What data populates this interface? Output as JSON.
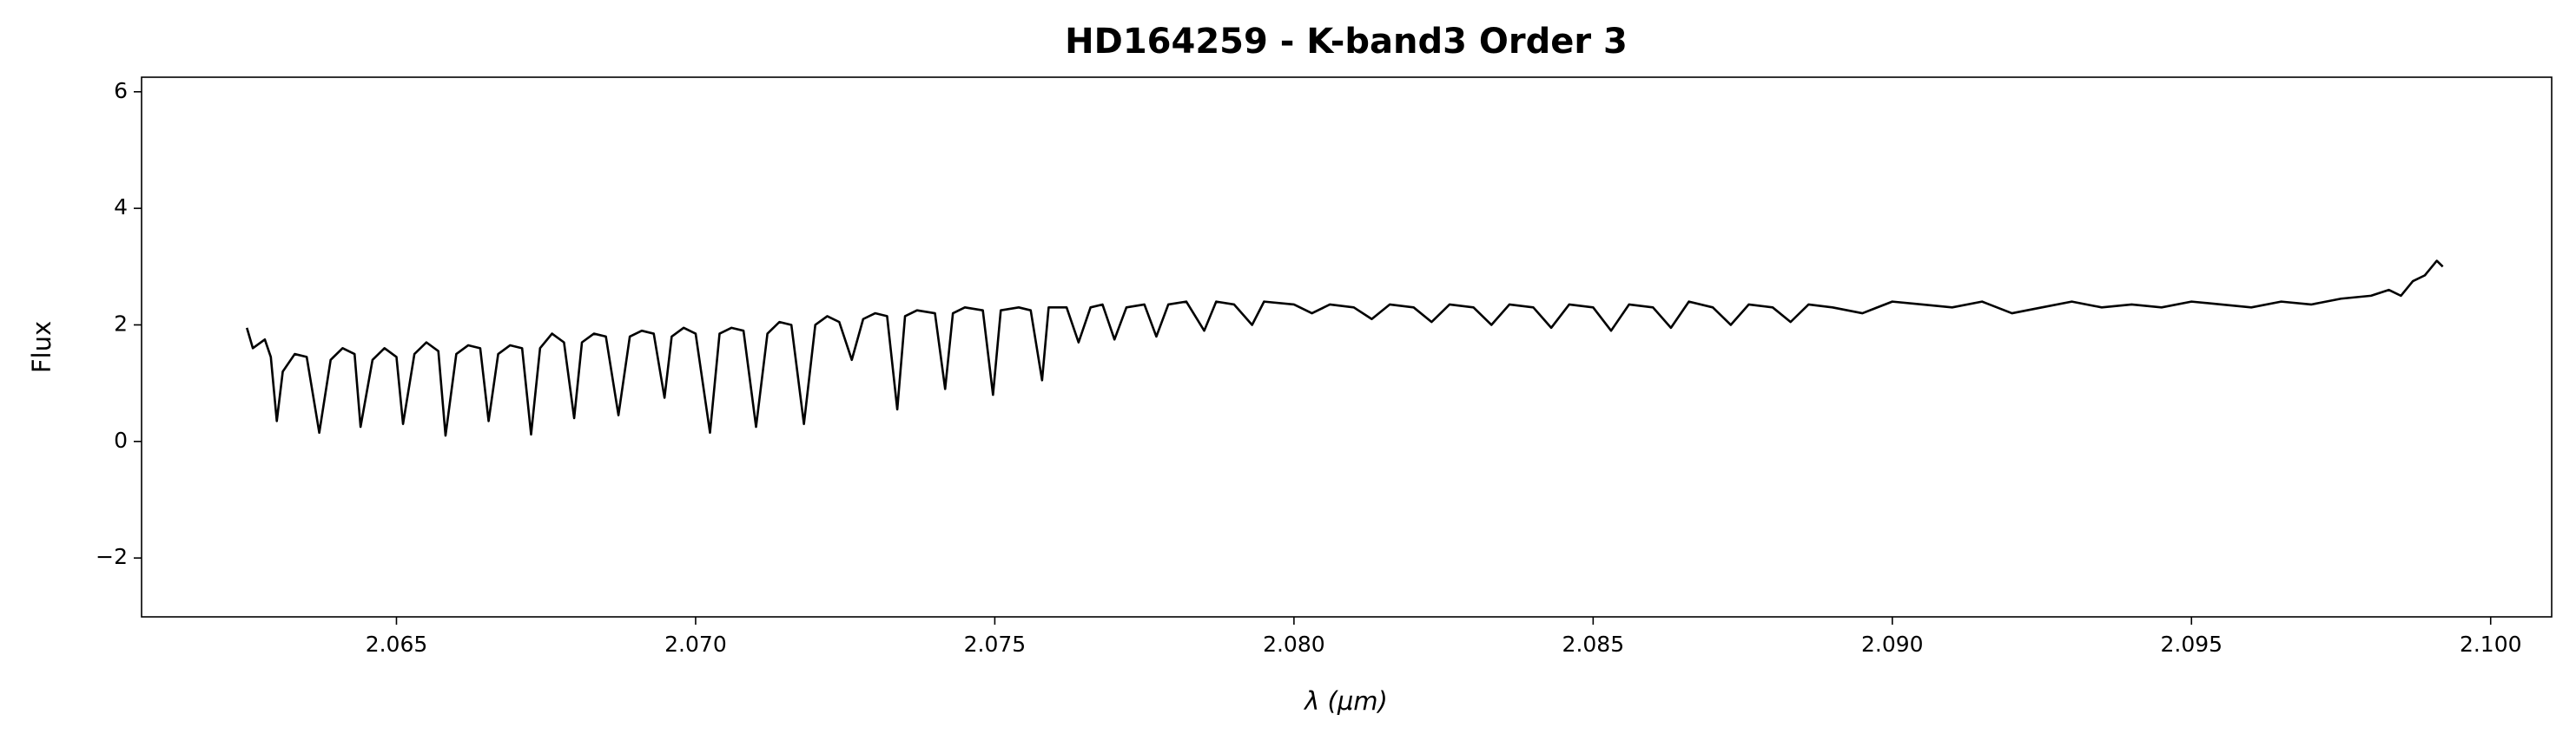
{
  "chart_data": {
    "type": "line",
    "title": "HD164259 - K-band3 Order 3",
    "xlabel": "λ (μm)",
    "ylabel": "Flux",
    "color": "#000000",
    "grid": false,
    "xlim": [
      2.06074,
      2.10102
    ],
    "ylim": [
      -3.01,
      6.25
    ],
    "xticks": [
      2.065,
      {
        "value": 2.07,
        "label": "2.070"
      },
      2.075,
      {
        "value": 2.08,
        "label": "2.080"
      },
      2.085,
      {
        "value": 2.09,
        "label": "2.090"
      },
      2.095,
      {
        "value": 2.1,
        "label": "2.100"
      }
    ],
    "yticks": [
      {
        "value": -2,
        "label": "−2"
      },
      0,
      2,
      4,
      6
    ],
    "x": [
      2.0625,
      2.0626,
      2.0628,
      2.0629,
      2.063,
      2.0631,
      2.0633,
      2.0635,
      2.06371,
      2.0639,
      2.0641,
      2.0643,
      2.0644,
      2.0646,
      2.0648,
      2.065,
      2.06511,
      2.0653,
      2.0655,
      2.0657,
      2.06582,
      2.066,
      2.0662,
      2.0664,
      2.06654,
      2.0667,
      2.0669,
      2.0671,
      2.06725,
      2.0674,
      2.0676,
      2.0678,
      2.06797,
      2.0681,
      2.0683,
      2.0685,
      2.06871,
      2.0689,
      2.0691,
      2.0693,
      2.06948,
      2.0696,
      2.0698,
      2.07,
      2.07024,
      2.0704,
      2.0706,
      2.0708,
      2.07101,
      2.0712,
      2.0714,
      2.0716,
      2.07181,
      2.072,
      2.0722,
      2.0724,
      2.07261,
      2.0728,
      2.073,
      2.0732,
      2.07337,
      2.0735,
      2.0737,
      2.074,
      2.07417,
      2.0743,
      2.0745,
      2.0748,
      2.07497,
      2.0751,
      2.0754,
      2.0756,
      2.07579,
      2.0759,
      2.0762,
      2.0764,
      2.0766,
      2.0768,
      2.077,
      2.0772,
      2.0775,
      2.0777,
      2.0779,
      2.0782,
      2.0785,
      2.0787,
      2.079,
      2.0793,
      2.0795,
      2.08,
      2.0803,
      2.0806,
      2.081,
      2.0813,
      2.0816,
      2.082,
      2.0823,
      2.0826,
      2.083,
      2.0833,
      2.0836,
      2.084,
      2.0843,
      2.0846,
      2.085,
      2.0853,
      2.0856,
      2.086,
      2.0863,
      2.0866,
      2.087,
      2.0873,
      2.0876,
      2.088,
      2.0883,
      2.0886,
      2.089,
      2.0895,
      2.09,
      2.0905,
      2.091,
      2.0915,
      2.092,
      2.0925,
      2.093,
      2.0935,
      2.094,
      2.0945,
      2.095,
      2.0955,
      2.096,
      2.0965,
      2.097,
      2.0975,
      2.098,
      2.0983,
      2.0985,
      2.0987,
      2.0989,
      2.0991,
      2.0992
    ],
    "values": [
      1.95,
      1.6,
      1.75,
      1.45,
      0.35,
      1.2,
      1.5,
      1.45,
      0.15,
      1.4,
      1.6,
      1.5,
      0.25,
      1.4,
      1.6,
      1.45,
      0.3,
      1.5,
      1.7,
      1.55,
      0.1,
      1.5,
      1.65,
      1.6,
      0.35,
      1.5,
      1.65,
      1.6,
      0.12,
      1.6,
      1.85,
      1.7,
      0.4,
      1.7,
      1.85,
      1.8,
      0.45,
      1.8,
      1.9,
      1.85,
      0.75,
      1.8,
      1.95,
      1.85,
      0.15,
      1.85,
      1.95,
      1.9,
      0.25,
      1.85,
      2.05,
      2.0,
      0.3,
      2.0,
      2.15,
      2.05,
      1.4,
      2.1,
      2.2,
      2.15,
      0.55,
      2.15,
      2.25,
      2.2,
      0.9,
      2.2,
      2.3,
      2.25,
      0.8,
      2.25,
      2.3,
      2.25,
      1.05,
      2.3,
      2.3,
      1.7,
      2.3,
      2.35,
      1.75,
      2.3,
      2.35,
      1.8,
      2.35,
      2.4,
      1.9,
      2.4,
      2.35,
      2.0,
      2.4,
      2.35,
      2.2,
      2.35,
      2.3,
      2.1,
      2.35,
      2.3,
      2.05,
      2.35,
      2.3,
      2.0,
      2.35,
      2.3,
      1.95,
      2.35,
      2.3,
      1.9,
      2.35,
      2.3,
      1.95,
      2.4,
      2.3,
      2.0,
      2.35,
      2.3,
      2.05,
      2.35,
      2.3,
      2.2,
      2.4,
      2.35,
      2.3,
      2.4,
      2.2,
      2.3,
      2.4,
      2.3,
      2.35,
      2.3,
      2.4,
      2.35,
      2.3,
      2.4,
      2.35,
      2.45,
      2.5,
      2.6,
      2.5,
      2.75,
      2.85,
      3.1,
      3.0
    ]
  }
}
